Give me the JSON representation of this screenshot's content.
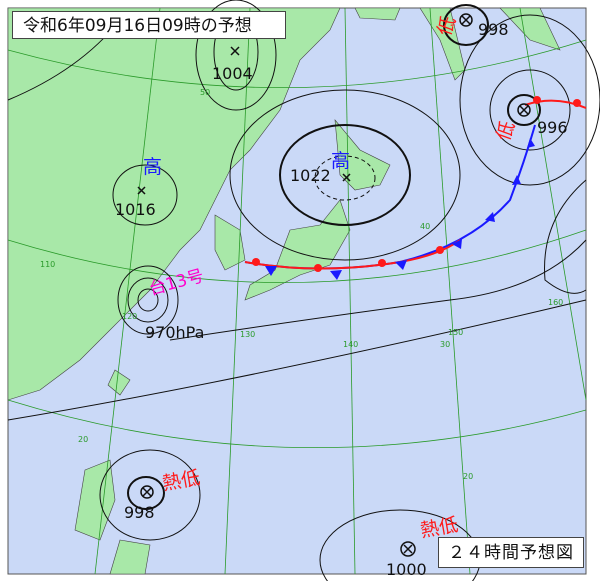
{
  "title": "令和6年09月16日09時の予想",
  "forecast_label": "２４時間予想図",
  "colors": {
    "sea": "#cad9f7",
    "land": "#a8e8a8",
    "high": "#1a1aff",
    "low": "#ff1a1a",
    "typhoon": "#ff00cc",
    "grid": "#2a9a2a",
    "isobar": "#111111"
  },
  "systems": [
    {
      "type": "high",
      "label": "高",
      "pressure": "1016"
    },
    {
      "type": "high",
      "label": "高",
      "pressure": "1022"
    },
    {
      "type": "low",
      "label": "低",
      "pressure": "998"
    },
    {
      "type": "low",
      "label": "低",
      "pressure": "996"
    },
    {
      "type": "low-unlabeled",
      "pressure": "1004"
    },
    {
      "type": "typhoon",
      "label": "台13号",
      "pressure": "970hPa"
    },
    {
      "type": "tropical-low",
      "label": "熱低",
      "pressure": "998"
    },
    {
      "type": "tropical-low",
      "label": "熱低",
      "pressure": "1000"
    }
  ],
  "grid_labels": {
    "lat": [
      "50",
      "40",
      "30",
      "20",
      "20"
    ],
    "lon": [
      "110",
      "120",
      "130",
      "140",
      "150",
      "160"
    ]
  }
}
